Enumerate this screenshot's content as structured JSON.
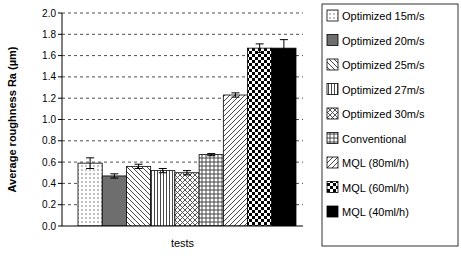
{
  "chart_data": {
    "type": "bar",
    "y_label": "Average roughness Ra (µm)",
    "x_label": "tests",
    "categories": [
      null
    ],
    "series": [
      {
        "name": "Optimized 15m/s",
        "color": "#555555",
        "values": [
          0.59
        ],
        "errors": [
          0.05
        ]
      },
      {
        "name": "Optimized 20m/s",
        "color": "#6e6e6e",
        "values": [
          0.47
        ],
        "errors": [
          0.02
        ]
      },
      {
        "name": "Optimized 25m/s",
        "color": "#333333",
        "values": [
          0.56
        ],
        "errors": [
          0.02
        ]
      },
      {
        "name": "Optimized 27m/s",
        "color": "#333333",
        "values": [
          0.52
        ],
        "errors": [
          0.02
        ]
      },
      {
        "name": "Optimized 30m/s",
        "color": "#444444",
        "values": [
          0.5
        ],
        "errors": [
          0.02
        ]
      },
      {
        "name": "Conventional",
        "color": "#333333",
        "values": [
          0.67
        ],
        "errors": [
          0.01
        ]
      },
      {
        "name": "MQL (80ml/h)",
        "color": "#333333",
        "values": [
          1.23
        ],
        "errors": [
          0.02
        ]
      },
      {
        "name": "MQL (60ml/h)",
        "color": "#000000",
        "values": [
          1.67
        ],
        "errors": [
          0.04
        ]
      },
      {
        "name": "MQL (40ml/h)",
        "color": "#000000",
        "values": [
          1.67
        ],
        "errors": [
          0.08
        ]
      }
    ],
    "ylim": [
      0,
      2
    ],
    "yticks": [
      {
        "value": 0,
        "label": "0.0"
      },
      0.2,
      0.4,
      0.6,
      0.8,
      {
        "value": 1,
        "label": "1.0"
      },
      1.2,
      1.4,
      1.6,
      1.8,
      {
        "value": 2,
        "label": "2.0"
      }
    ],
    "grid": true,
    "legend": "right"
  }
}
